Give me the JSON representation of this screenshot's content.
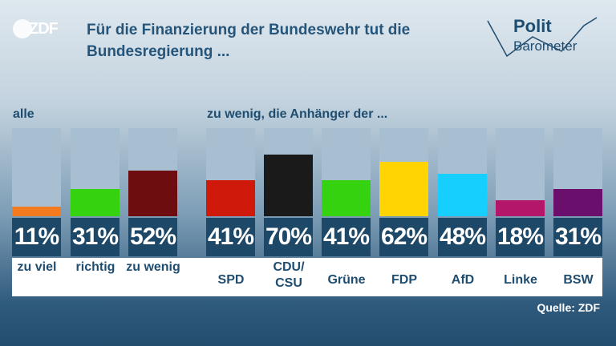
{
  "header": {
    "logo": "ZDF",
    "title": "Für die Finanzierung der Bundeswehr tut die Bundesregierung ...",
    "brand_line1": "Polit",
    "brand_line2": "Barometer"
  },
  "labels": {
    "all": "alle",
    "parties": "zu wenig, die Anhänger der ..."
  },
  "source": "Quelle: ZDF",
  "chart_data": {
    "type": "bar",
    "title": "Für die Finanzierung der Bundeswehr tut die Bundesregierung ...",
    "ylim": [
      0,
      100
    ],
    "groups": [
      {
        "label": "alle",
        "categories": [
          "zu viel",
          "richtig",
          "zu wenig"
        ],
        "values": [
          11,
          31,
          52
        ],
        "value_labels": [
          "11%",
          "31%",
          "52%"
        ],
        "colors": [
          "#f47a1f",
          "#35d20f",
          "#6e0d0f"
        ]
      },
      {
        "label": "zu wenig, die Anhänger der ...",
        "categories": [
          "SPD",
          "CDU/\nCSU",
          "Grüne",
          "FDP",
          "AfD",
          "Linke",
          "BSW"
        ],
        "values": [
          41,
          70,
          41,
          62,
          48,
          18,
          31
        ],
        "value_labels": [
          "41%",
          "70%",
          "41%",
          "62%",
          "48%",
          "18%",
          "31%"
        ],
        "colors": [
          "#cf1a0b",
          "#1a1a1a",
          "#35d20f",
          "#ffd400",
          "#17cfff",
          "#b4176a",
          "#6a0f6b"
        ]
      }
    ]
  }
}
